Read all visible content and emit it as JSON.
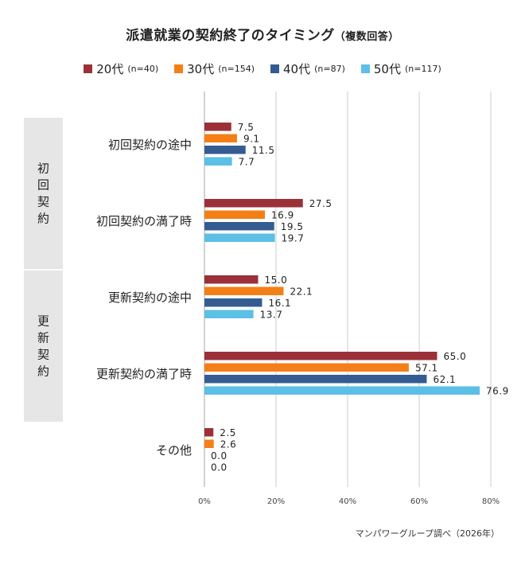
{
  "title": "派遣就業の契約終了のタイミング",
  "subtitle": "（複数回答）",
  "source": "マンパワーグループ調べ（2026年）",
  "chart_data": {
    "type": "bar",
    "orientation": "horizontal",
    "categories": [
      "初回契約の途中",
      "初回契約の満了時",
      "更新契約の途中",
      "更新契約の満了時",
      "その他"
    ],
    "groups": [
      {
        "label": "初回契約",
        "categories": [
          0,
          1
        ]
      },
      {
        "label": "更新契約",
        "categories": [
          2,
          3
        ]
      }
    ],
    "series": [
      {
        "name": "20代",
        "n_label": "(n=40)",
        "color": "#9b3039",
        "values": [
          7.5,
          27.5,
          15.0,
          65.0,
          2.5
        ]
      },
      {
        "name": "30代",
        "n_label": "(n=154)",
        "color": "#f57f17",
        "values": [
          9.1,
          16.9,
          22.1,
          57.1,
          2.6
        ]
      },
      {
        "name": "40代",
        "n_label": "(n=87)",
        "color": "#355c92",
        "values": [
          11.5,
          19.5,
          16.1,
          62.1,
          0.0
        ]
      },
      {
        "name": "50代",
        "n_label": "(n=117)",
        "color": "#5bbfe6",
        "values": [
          7.7,
          19.7,
          13.7,
          76.9,
          0.0
        ]
      }
    ],
    "xlim": [
      0,
      80
    ],
    "xticks": [
      0,
      20,
      40,
      60,
      80
    ],
    "xtick_labels": [
      "0%",
      "20%",
      "40%",
      "60%",
      "80%"
    ],
    "grid": true,
    "legend": "top"
  }
}
